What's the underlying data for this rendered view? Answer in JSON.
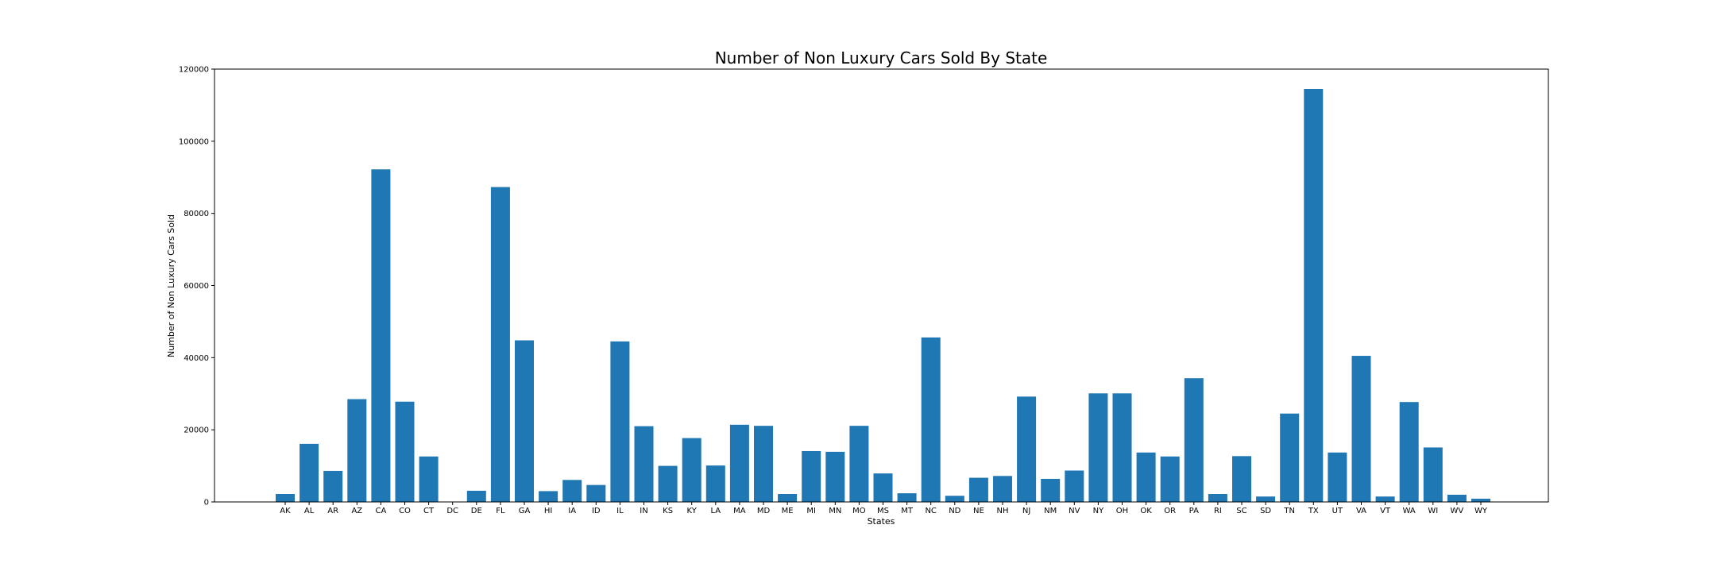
{
  "chart_data": {
    "type": "bar",
    "title": "Number of Non Luxury Cars Sold By State",
    "xlabel": "States",
    "ylabel": "Number of Non Luxury Cars Sold",
    "ylim": [
      0,
      120000
    ],
    "yticks": [
      0,
      20000,
      40000,
      60000,
      80000,
      100000,
      120000
    ],
    "ytick_labels": [
      "0",
      "20000",
      "40000",
      "60000",
      "80000",
      "100000",
      "120000"
    ],
    "grid": false,
    "bar_color": "#1f77b4",
    "categories": [
      "AK",
      "AL",
      "AR",
      "AZ",
      "CA",
      "CO",
      "CT",
      "DC",
      "DE",
      "FL",
      "GA",
      "HI",
      "IA",
      "ID",
      "IL",
      "IN",
      "KS",
      "KY",
      "LA",
      "MA",
      "MD",
      "ME",
      "MI",
      "MN",
      "MO",
      "MS",
      "MT",
      "NC",
      "ND",
      "NE",
      "NH",
      "NJ",
      "NM",
      "NV",
      "NY",
      "OH",
      "OK",
      "OR",
      "PA",
      "RI",
      "SC",
      "SD",
      "TN",
      "TX",
      "UT",
      "VA",
      "VT",
      "WA",
      "WI",
      "WV",
      "WY"
    ],
    "values": [
      2200,
      16100,
      8600,
      28500,
      92200,
      27800,
      12600,
      0,
      3100,
      87300,
      44800,
      3000,
      6100,
      4700,
      44500,
      21000,
      10000,
      17700,
      10100,
      21400,
      21100,
      2200,
      14100,
      13900,
      21100,
      7900,
      2400,
      45600,
      1700,
      6700,
      7200,
      29200,
      6400,
      8700,
      30100,
      30100,
      13700,
      12600,
      34300,
      2200,
      12700,
      1500,
      24500,
      114500,
      13700,
      40500,
      1500,
      27700,
      15100,
      2000,
      900
    ]
  }
}
